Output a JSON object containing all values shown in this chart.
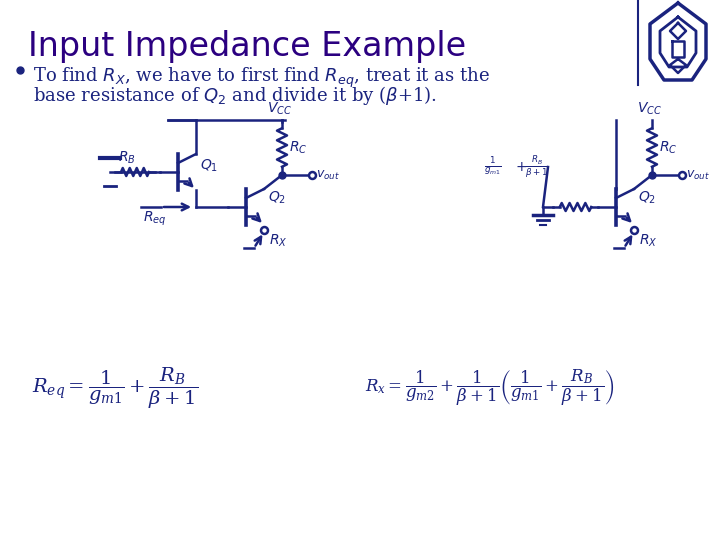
{
  "title": "Input Impedance Example",
  "title_color": "#2b0080",
  "title_fontsize": 24,
  "bg_color": "#ffffff",
  "cc": "#1a237e",
  "bullet_line1": "To find $R_X$, we have to first find $R_{eq}$, treat it as the",
  "bullet_line2": "base resistance of $Q_2$ and divide it by ($\\beta$+1).",
  "text_fontsize": 13,
  "formula_left": "$R_{eq} = \\dfrac{1}{g_{m1}} + \\dfrac{R_B}{\\beta+1}$",
  "formula_right": "$R_x = \\dfrac{1}{g_{m2}} + \\dfrac{1}{\\beta+1}\\left(\\dfrac{1}{g_{m1}} + \\dfrac{R_B}{\\beta+1}\\right)$"
}
